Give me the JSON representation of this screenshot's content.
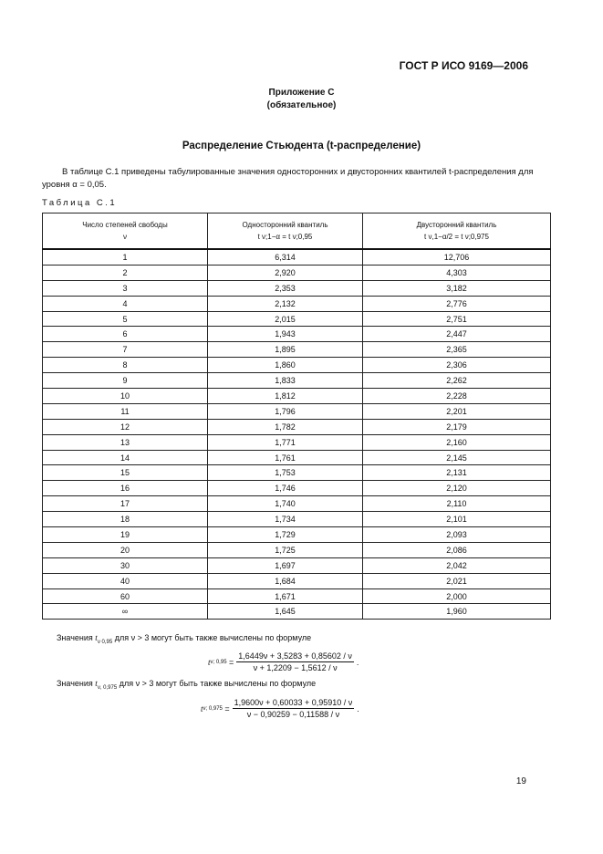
{
  "header": "ГОСТ Р ИСО 9169—2006",
  "appendix": {
    "title": "Приложение С",
    "note": "(обязательное)"
  },
  "title": "Распределение Стьюдента (t-распределение)",
  "intro": "В таблице С.1 приведены табулированные значения односторонних и двусторонних квантилей t-распределения для уровня α = 0,05.",
  "table_caption": "Таблица С.1",
  "table": {
    "headers": [
      {
        "label": "Число степеней свободы",
        "sub": "ν"
      },
      {
        "label": "Односторонний квантиль",
        "sub": "t ν;1−α = t ν;0,95"
      },
      {
        "label": "Двусторонний квантиль",
        "sub": "t ν,1−α/2 = t ν;0,975"
      }
    ],
    "rows": [
      [
        "1",
        "6,314",
        "12,706"
      ],
      [
        "2",
        "2,920",
        "4,303"
      ],
      [
        "3",
        "2,353",
        "3,182"
      ],
      [
        "4",
        "2,132",
        "2,776"
      ],
      [
        "5",
        "2,015",
        "2,751"
      ],
      [
        "6",
        "1,943",
        "2,447"
      ],
      [
        "7",
        "1,895",
        "2,365"
      ],
      [
        "8",
        "1,860",
        "2,306"
      ],
      [
        "9",
        "1,833",
        "2,262"
      ],
      [
        "10",
        "1,812",
        "2,228"
      ],
      [
        "11",
        "1,796",
        "2,201"
      ],
      [
        "12",
        "1,782",
        "2,179"
      ],
      [
        "13",
        "1,771",
        "2,160"
      ],
      [
        "14",
        "1,761",
        "2,145"
      ],
      [
        "15",
        "1,753",
        "2,131"
      ],
      [
        "16",
        "1,746",
        "2,120"
      ],
      [
        "17",
        "1,740",
        "2,110"
      ],
      [
        "18",
        "1,734",
        "2,101"
      ],
      [
        "19",
        "1,729",
        "2,093"
      ],
      [
        "20",
        "1,725",
        "2,086"
      ],
      [
        "30",
        "1,697",
        "2,042"
      ],
      [
        "40",
        "1,684",
        "2,021"
      ],
      [
        "60",
        "1,671",
        "2,000"
      ],
      [
        "∞",
        "1,645",
        "1,960"
      ]
    ]
  },
  "notes": [
    {
      "text_before": "Значения",
      "symbol": "t",
      "sub": "ν 0,95",
      "text_after": "для ν > 3  могут быть также вычислены по формуле",
      "lhs_sub": "ν; 0,95",
      "numerator": "1,6449ν + 3,5283 + 0,85602 / ν",
      "denominator": "ν + 1,2209 − 1,5612 / ν"
    },
    {
      "text_before": "Значения",
      "symbol": "t",
      "sub": "ν, 0,975",
      "text_after": "для ν > 3  могут быть также вычислены по формуле",
      "lhs_sub": "ν; 0,975",
      "numerator": "1,9600ν + 0,60033 + 0,95910 / ν",
      "denominator": "ν − 0,90259 − 0,11588 / ν"
    }
  ],
  "page_number": "19"
}
